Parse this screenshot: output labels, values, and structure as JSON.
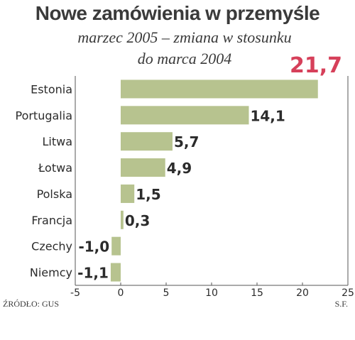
{
  "chart_data": {
    "type": "bar",
    "orientation": "horizontal",
    "title": "Nowe zamówienia w przemyśle",
    "subtitle_lines": [
      "marzec 2005 – zmiana w stosunku",
      "do marca 2004"
    ],
    "categories": [
      "Estonia",
      "Portugalia",
      "Litwa",
      "Łotwa",
      "Polska",
      "Francja",
      "Czechy",
      "Niemcy"
    ],
    "values": [
      21.7,
      14.1,
      5.7,
      4.9,
      1.5,
      0.3,
      -1.0,
      -1.1
    ],
    "value_labels": [
      "21,7",
      "14,1",
      "5,7",
      "4,9",
      "1,5",
      "0,3",
      "-1,0",
      "-1,1"
    ],
    "highlight_index": 0,
    "xlim": [
      -5,
      25
    ],
    "xticks": [
      -5,
      0,
      5,
      10,
      15,
      20,
      25
    ],
    "xlabel": "",
    "ylabel": "",
    "grid": false,
    "legend": "none",
    "bar_color": "#b7c38f",
    "highlight_color": "#d6405a",
    "text_color": "#2b2b2b"
  },
  "footer": {
    "source": "ŹRÓDŁO: GUS",
    "initials": "S.F."
  }
}
